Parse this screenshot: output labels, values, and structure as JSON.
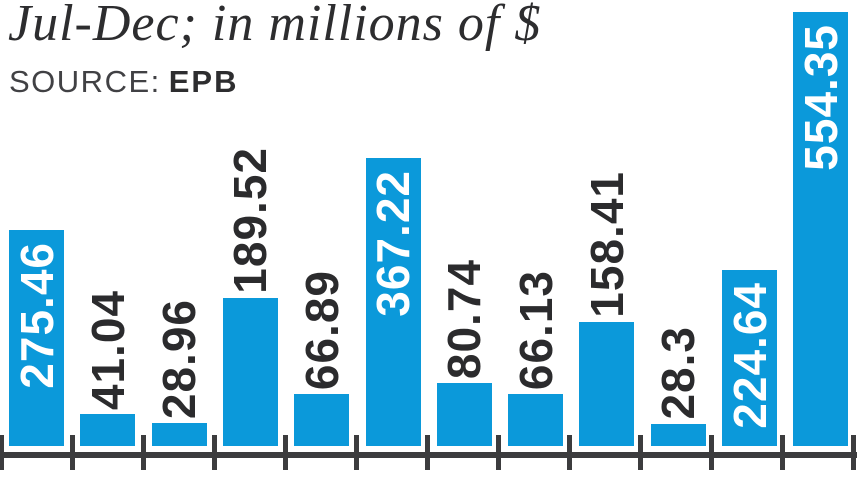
{
  "header": {
    "title": "Jul-Dec; in millions of $",
    "source_label": "SOURCE:",
    "source_value": "EPB"
  },
  "chart_data": {
    "type": "bar",
    "title": "Jul-Dec; in millions of $",
    "source": "EPB",
    "labels": [
      "275.46",
      "41.04",
      "28.96",
      "189.52",
      "66.89",
      "367.22",
      "80.74",
      "66.13",
      "158.41",
      "28.3",
      "224.64",
      "554.35"
    ],
    "values": [
      275.46,
      41.04,
      28.96,
      189.52,
      66.89,
      367.22,
      80.74,
      66.13,
      158.41,
      28.3,
      224.64,
      554.35
    ],
    "x_tick_labels_visible": false,
    "x_tick_count": 13,
    "ylim": [
      0,
      570
    ],
    "grid": false,
    "legend": false,
    "value_labels_rotated_90": true,
    "bar_color": "#0b99da",
    "label_color_inside": "#ffffff",
    "label_color_outside": "#2b2b2d",
    "axis_color": "#3c3c3e"
  }
}
